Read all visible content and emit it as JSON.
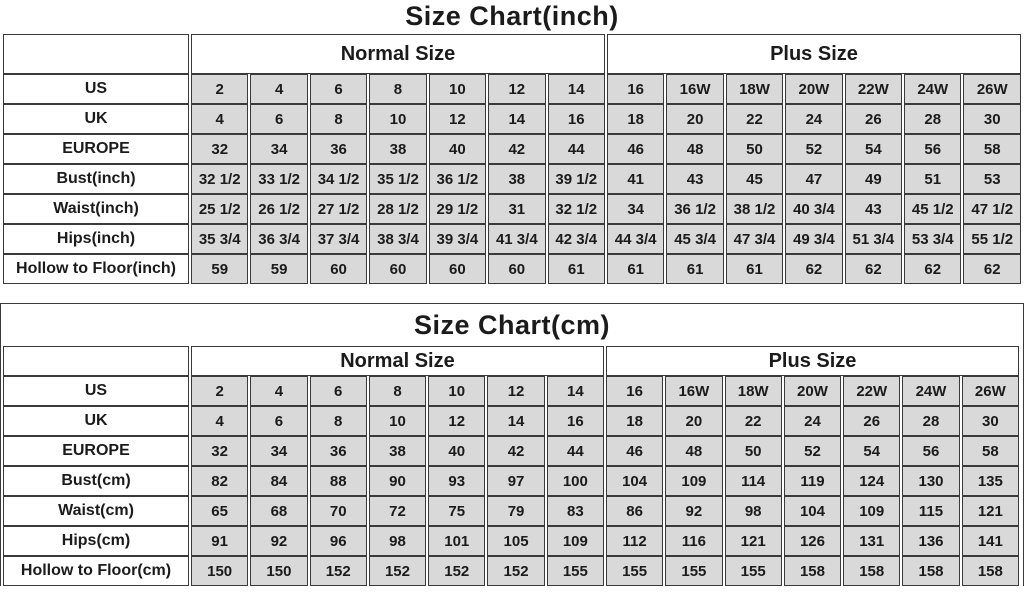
{
  "colors": {
    "cell_bg": "#d9d9d9",
    "label_bg": "#ffffff",
    "border": "#3a3a3a",
    "text": "#1b1b1b"
  },
  "chart_data": [
    {
      "type": "table",
      "title": "Size Chart(inch)",
      "column_groups": [
        {
          "label": "",
          "span": 1
        },
        {
          "label": "Normal Size",
          "span": 7
        },
        {
          "label": "Plus Size",
          "span": 7
        }
      ],
      "rows": [
        {
          "label": "US",
          "values": [
            "2",
            "4",
            "6",
            "8",
            "10",
            "12",
            "14",
            "16",
            "16W",
            "18W",
            "20W",
            "22W",
            "24W",
            "26W"
          ]
        },
        {
          "label": "UK",
          "values": [
            "4",
            "6",
            "8",
            "10",
            "12",
            "14",
            "16",
            "18",
            "20",
            "22",
            "24",
            "26",
            "28",
            "30"
          ]
        },
        {
          "label": "EUROPE",
          "values": [
            "32",
            "34",
            "36",
            "38",
            "40",
            "42",
            "44",
            "46",
            "48",
            "50",
            "52",
            "54",
            "56",
            "58"
          ]
        },
        {
          "label": "Bust(inch)",
          "values": [
            "32 1/2",
            "33 1/2",
            "34 1/2",
            "35 1/2",
            "36 1/2",
            "38",
            "39 1/2",
            "41",
            "43",
            "45",
            "47",
            "49",
            "51",
            "53"
          ]
        },
        {
          "label": "Waist(inch)",
          "values": [
            "25 1/2",
            "26 1/2",
            "27 1/2",
            "28 1/2",
            "29 1/2",
            "31",
            "32 1/2",
            "34",
            "36 1/2",
            "38 1/2",
            "40 3/4",
            "43",
            "45 1/2",
            "47 1/2"
          ]
        },
        {
          "label": "Hips(inch)",
          "values": [
            "35 3/4",
            "36 3/4",
            "37 3/4",
            "38 3/4",
            "39 3/4",
            "41 3/4",
            "42 3/4",
            "44 3/4",
            "45 3/4",
            "47 3/4",
            "49 3/4",
            "51 3/4",
            "53 3/4",
            "55 1/2"
          ]
        },
        {
          "label": "Hollow to Floor(inch)",
          "values": [
            "59",
            "59",
            "60",
            "60",
            "60",
            "60",
            "61",
            "61",
            "61",
            "61",
            "62",
            "62",
            "62",
            "62"
          ]
        }
      ]
    },
    {
      "type": "table",
      "title": "Size Chart(cm)",
      "column_groups": [
        {
          "label": "",
          "span": 1
        },
        {
          "label": "Normal Size",
          "span": 7
        },
        {
          "label": "Plus Size",
          "span": 7
        }
      ],
      "rows": [
        {
          "label": "US",
          "values": [
            "2",
            "4",
            "6",
            "8",
            "10",
            "12",
            "14",
            "16",
            "16W",
            "18W",
            "20W",
            "22W",
            "24W",
            "26W"
          ]
        },
        {
          "label": "UK",
          "values": [
            "4",
            "6",
            "8",
            "10",
            "12",
            "14",
            "16",
            "18",
            "20",
            "22",
            "24",
            "26",
            "28",
            "30"
          ]
        },
        {
          "label": "EUROPE",
          "values": [
            "32",
            "34",
            "36",
            "38",
            "40",
            "42",
            "44",
            "46",
            "48",
            "50",
            "52",
            "54",
            "56",
            "58"
          ]
        },
        {
          "label": "Bust(cm)",
          "values": [
            "82",
            "84",
            "88",
            "90",
            "93",
            "97",
            "100",
            "104",
            "109",
            "114",
            "119",
            "124",
            "130",
            "135"
          ]
        },
        {
          "label": "Waist(cm)",
          "values": [
            "65",
            "68",
            "70",
            "72",
            "75",
            "79",
            "83",
            "86",
            "92",
            "98",
            "104",
            "109",
            "115",
            "121"
          ]
        },
        {
          "label": "Hips(cm)",
          "values": [
            "91",
            "92",
            "96",
            "98",
            "101",
            "105",
            "109",
            "112",
            "116",
            "121",
            "126",
            "131",
            "136",
            "141"
          ]
        },
        {
          "label": "Hollow to Floor(cm)",
          "values": [
            "150",
            "150",
            "152",
            "152",
            "152",
            "152",
            "155",
            "155",
            "155",
            "155",
            "158",
            "158",
            "158",
            "158"
          ]
        }
      ]
    }
  ]
}
